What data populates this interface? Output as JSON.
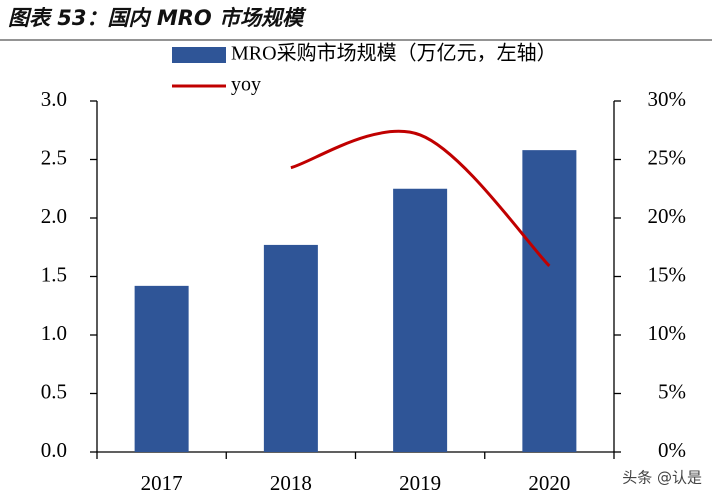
{
  "chart_data": {
    "type": "combo",
    "title": "图表 53：国内 MRO 市场规模",
    "categories": [
      "2017",
      "2018",
      "2019",
      "2020"
    ],
    "series": [
      {
        "name": "MRO采购市场规模（万亿元，左轴）",
        "type": "bar",
        "color": "#2f5597",
        "values": [
          1.42,
          1.77,
          2.25,
          2.58
        ]
      },
      {
        "name": "yoy",
        "type": "line",
        "axis": "y2",
        "color": "#c00000",
        "values": [
          null,
          24.3,
          27.1,
          15.9
        ]
      }
    ],
    "ylim": [
      0,
      3
    ],
    "yticks": [
      {
        "value": 0,
        "label": "0.0"
      },
      {
        "value": 0.5,
        "label": "0.5"
      },
      {
        "value": 1,
        "label": "1.0"
      },
      {
        "value": 1.5,
        "label": "1.5"
      },
      {
        "value": 2,
        "label": "2.0"
      },
      {
        "value": 2.5,
        "label": "2.5"
      },
      {
        "value": 3,
        "label": "3.0"
      }
    ],
    "y2lim": [
      0,
      30
    ],
    "y2ticks": [
      {
        "value": 0,
        "label": "0%"
      },
      {
        "value": 5,
        "label": "5%"
      },
      {
        "value": 10,
        "label": "10%"
      },
      {
        "value": 15,
        "label": "15%"
      },
      {
        "value": 20,
        "label": "20%"
      },
      {
        "value": 25,
        "label": "25%"
      },
      {
        "value": 30,
        "label": "30%"
      }
    ]
  },
  "watermark": "头条 @认是"
}
